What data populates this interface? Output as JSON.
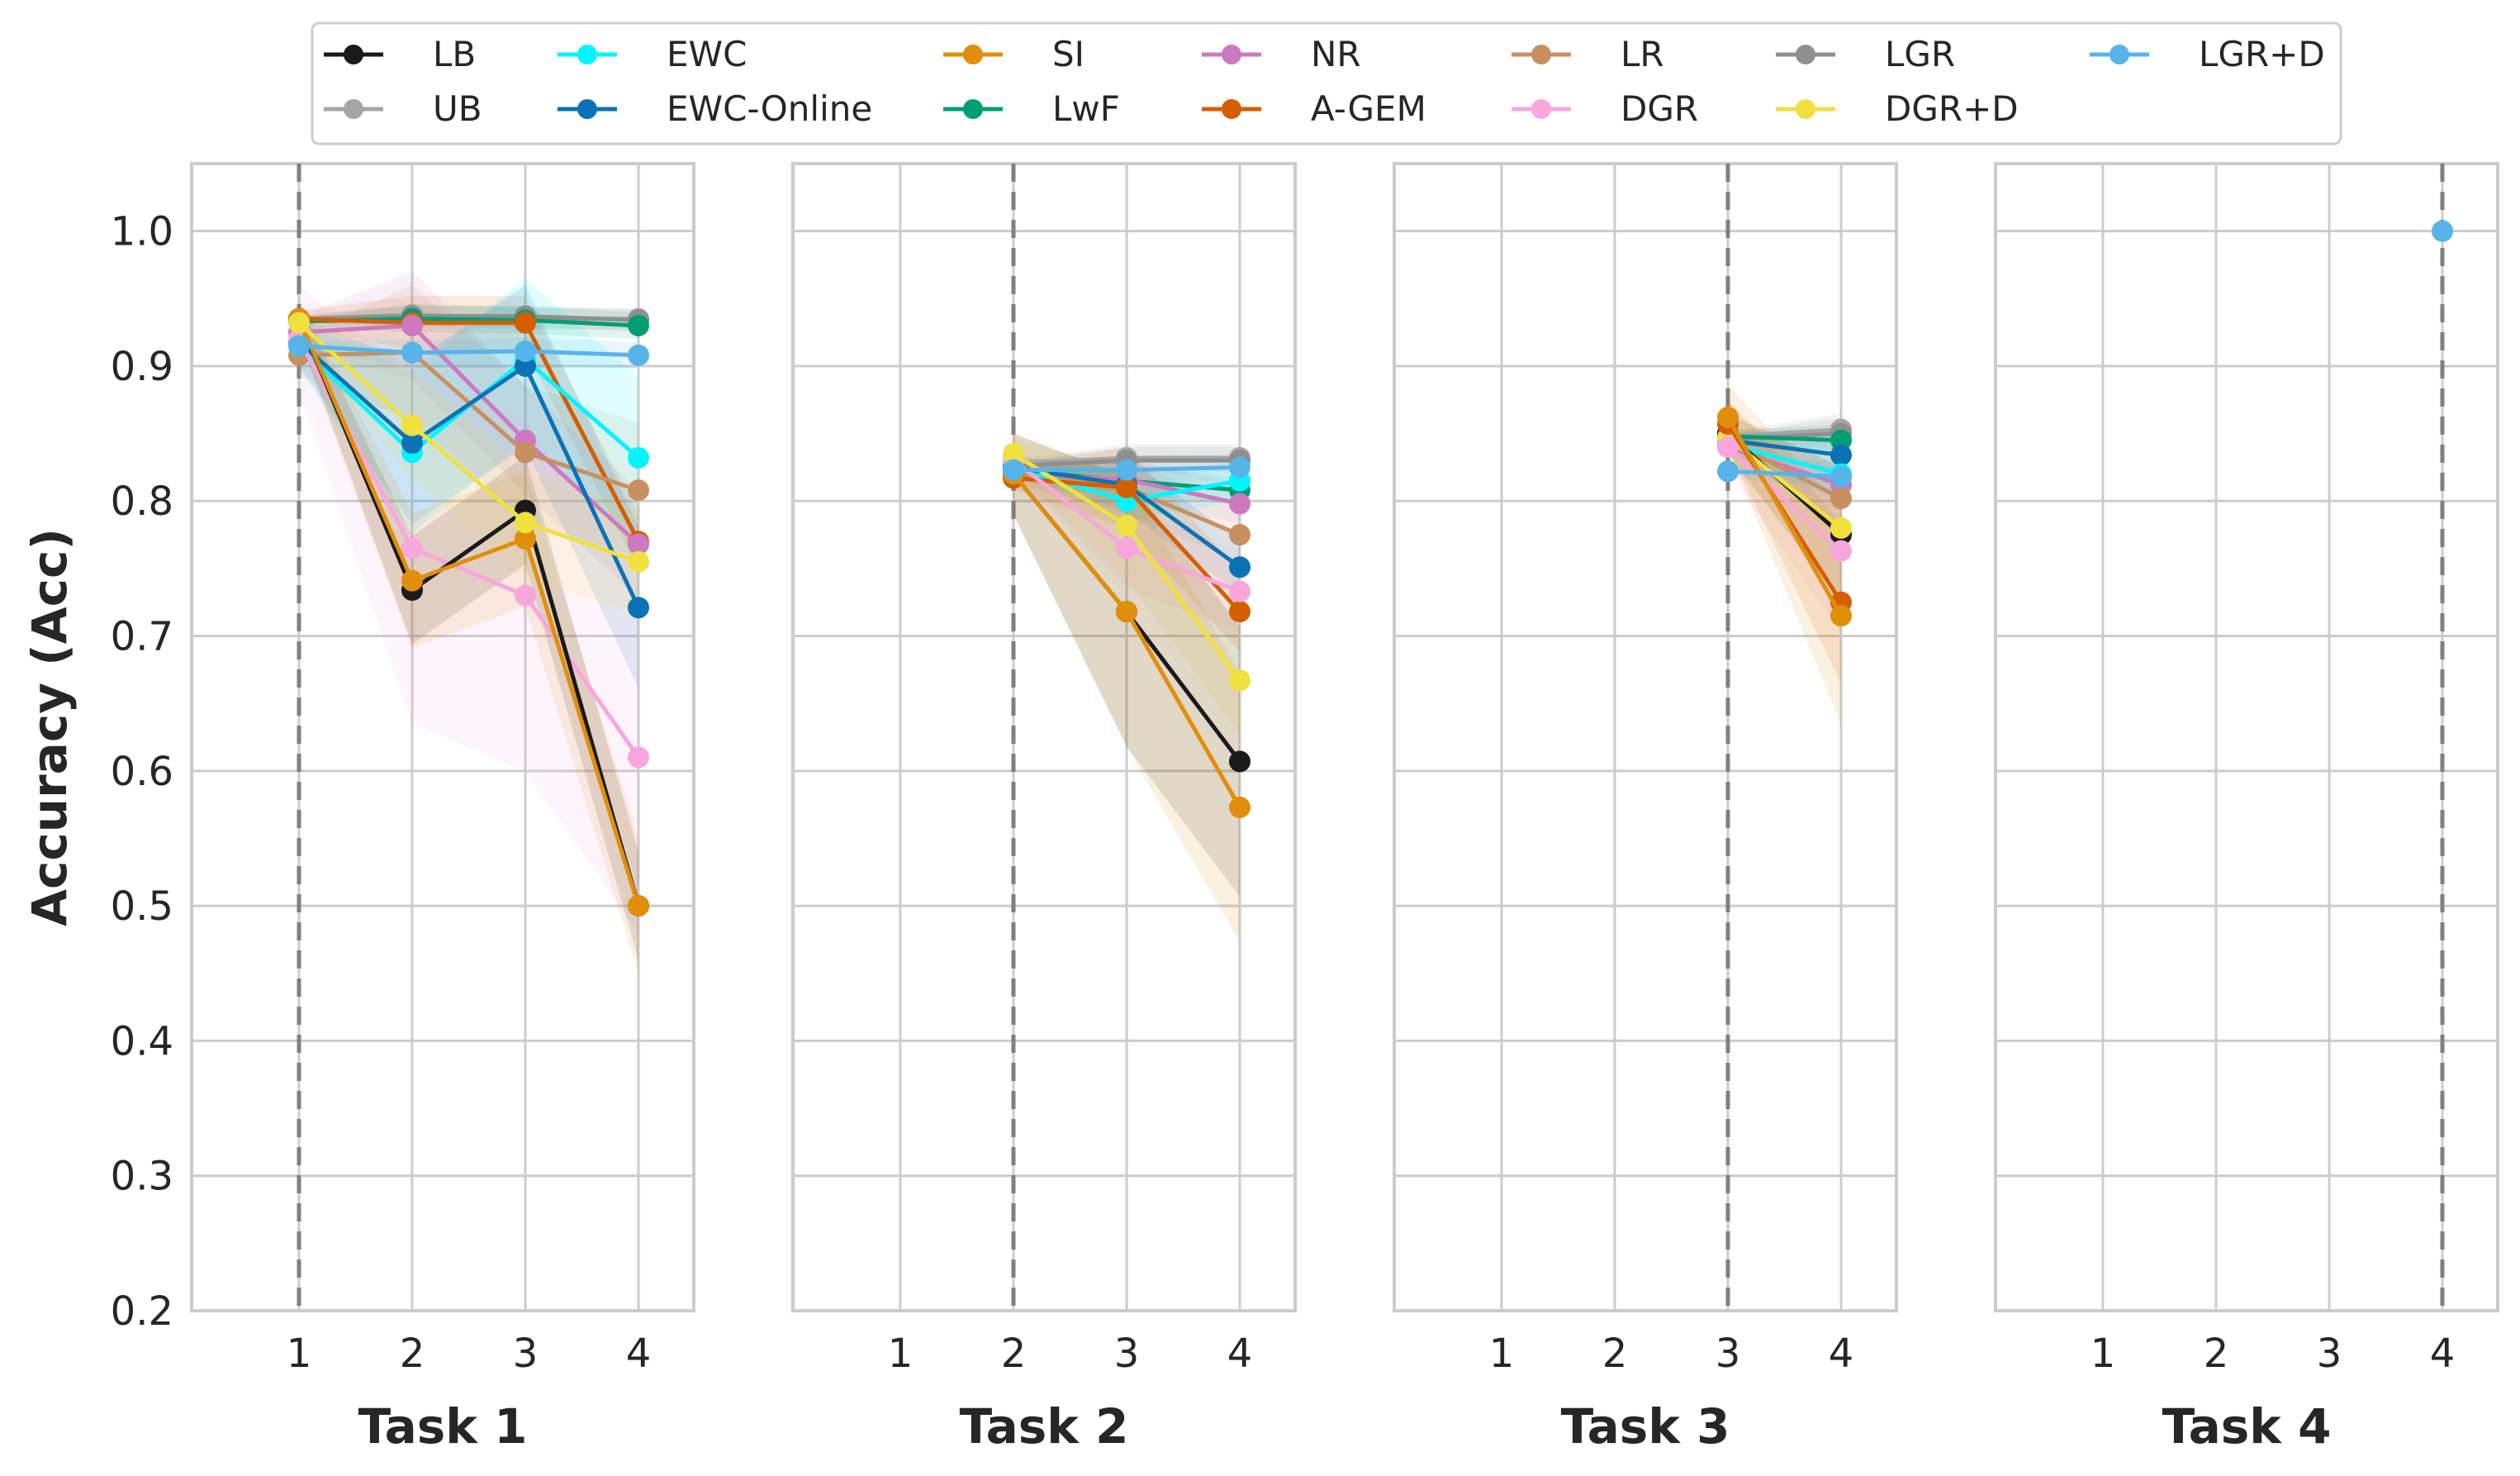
{
  "chart_data": {
    "type": "line",
    "ylabel": "Accuracy (Acc)",
    "ylim": [
      0.2,
      1.05
    ],
    "yticks": [
      "0.2",
      "0.3",
      "0.4",
      "0.5",
      "0.6",
      "0.7",
      "0.8",
      "0.9",
      "1.0"
    ],
    "x": [
      1,
      2,
      3,
      4
    ],
    "xtick_labels": [
      "1",
      "2",
      "3",
      "4"
    ],
    "grid": true,
    "legend_position": "top-center",
    "legend": [
      {
        "name": "LB",
        "color": "#1a1a1a"
      },
      {
        "name": "UB",
        "color": "#a6a6a6"
      },
      {
        "name": "EWC",
        "color": "#00f5ff"
      },
      {
        "name": "EWC-Online",
        "color": "#0b72b5"
      },
      {
        "name": "SI",
        "color": "#e08e0b"
      },
      {
        "name": "LwF",
        "color": "#009e73"
      },
      {
        "name": "NR",
        "color": "#cc79c1"
      },
      {
        "name": "A-GEM",
        "color": "#d55e00"
      },
      {
        "name": "LR",
        "color": "#c8905f"
      },
      {
        "name": "DGR",
        "color": "#f9a6dc"
      },
      {
        "name": "LGR",
        "color": "#8f8f8f"
      },
      {
        "name": "DGR+D",
        "color": "#f0e040"
      },
      {
        "name": "LGR+D",
        "color": "#56b4e9"
      }
    ],
    "panels": [
      {
        "xlabel": "Task 1",
        "task_line": 1,
        "series": [
          {
            "name": "UB",
            "x": [
              1,
              2,
              3,
              4
            ],
            "values": [
              0.935,
              0.938,
              0.935,
              0.935
            ],
            "band": 0.008
          },
          {
            "name": "LGR",
            "x": [
              1,
              2,
              3,
              4
            ],
            "values": [
              0.935,
              0.937,
              0.937,
              0.934
            ],
            "band": 0.008
          },
          {
            "name": "LwF",
            "x": [
              1,
              2,
              3,
              4
            ],
            "values": [
              0.933,
              0.935,
              0.934,
              0.93
            ],
            "band": 0.01
          },
          {
            "name": "A-GEM",
            "x": [
              1,
              2,
              3,
              4
            ],
            "values": [
              0.935,
              0.932,
              0.932,
              0.77
            ],
            "band": 0.02
          },
          {
            "name": "NR",
            "x": [
              1,
              2,
              3,
              4
            ],
            "values": [
              0.925,
              0.93,
              0.845,
              0.768
            ],
            "band": 0.04
          },
          {
            "name": "LR",
            "x": [
              1,
              2,
              3,
              4
            ],
            "values": [
              0.908,
              0.91,
              0.836,
              0.808
            ],
            "band": 0.05
          },
          {
            "name": "EWC",
            "x": [
              1,
              2,
              3,
              4
            ],
            "values": [
              0.915,
              0.836,
              0.905,
              0.832
            ],
            "band": 0.06
          },
          {
            "name": "EWC-Online",
            "x": [
              1,
              2,
              3,
              4
            ],
            "values": [
              0.918,
              0.843,
              0.9,
              0.721
            ],
            "band": 0.06
          },
          {
            "name": "DGR",
            "x": [
              1,
              2,
              3,
              4
            ],
            "values": [
              0.92,
              0.765,
              0.73,
              0.61
            ],
            "band": 0.13
          },
          {
            "name": "LB",
            "x": [
              1,
              2,
              3,
              4
            ],
            "values": [
              0.935,
              0.734,
              0.793,
              0.5
            ],
            "band": 0.04
          },
          {
            "name": "SI",
            "x": [
              1,
              2,
              3,
              4
            ],
            "values": [
              0.935,
              0.741,
              0.772,
              0.5
            ],
            "band": 0.05
          },
          {
            "name": "DGR+D",
            "x": [
              1,
              2,
              3,
              4
            ],
            "values": [
              0.932,
              0.856,
              0.784,
              0.755
            ],
            "band": 0.04
          },
          {
            "name": "LGR+D",
            "x": [
              1,
              2,
              3,
              4
            ],
            "values": [
              0.915,
              0.91,
              0.911,
              0.908
            ],
            "band": 0.01
          }
        ]
      },
      {
        "xlabel": "Task 2",
        "task_line": 2,
        "series": [
          {
            "name": "UB",
            "x": [
              2,
              3,
              4
            ],
            "values": [
              0.828,
              0.832,
              0.832
            ],
            "band": 0.01
          },
          {
            "name": "LGR",
            "x": [
              2,
              3,
              4
            ],
            "values": [
              0.826,
              0.83,
              0.83
            ],
            "band": 0.01
          },
          {
            "name": "LwF",
            "x": [
              2,
              3,
              4
            ],
            "values": [
              0.823,
              0.815,
              0.808
            ],
            "band": 0.01
          },
          {
            "name": "NR",
            "x": [
              2,
              3,
              4
            ],
            "values": [
              0.82,
              0.816,
              0.798
            ],
            "band": 0.015
          },
          {
            "name": "LR",
            "x": [
              2,
              3,
              4
            ],
            "values": [
              0.82,
              0.81,
              0.775
            ],
            "band": 0.02
          },
          {
            "name": "EWC",
            "x": [
              2,
              3,
              4
            ],
            "values": [
              0.825,
              0.8,
              0.815
            ],
            "band": 0.015
          },
          {
            "name": "EWC-Online",
            "x": [
              2,
              3,
              4
            ],
            "values": [
              0.825,
              0.812,
              0.751
            ],
            "band": 0.02
          },
          {
            "name": "A-GEM",
            "x": [
              2,
              3,
              4
            ],
            "values": [
              0.817,
              0.81,
              0.718
            ],
            "band": 0.03
          },
          {
            "name": "DGR",
            "x": [
              2,
              3,
              4
            ],
            "values": [
              0.83,
              0.765,
              0.733
            ],
            "band": 0.03
          },
          {
            "name": "DGR+D",
            "x": [
              2,
              3,
              4
            ],
            "values": [
              0.835,
              0.782,
              0.667
            ],
            "band": 0.04
          },
          {
            "name": "LB",
            "x": [
              2,
              3,
              4
            ],
            "values": [
              0.82,
              0.718,
              0.607
            ],
            "band": 0.1
          },
          {
            "name": "SI",
            "x": [
              2,
              3,
              4
            ],
            "values": [
              0.82,
              0.718,
              0.573
            ],
            "band": 0.1
          },
          {
            "name": "LGR+D",
            "x": [
              2,
              3,
              4
            ],
            "values": [
              0.823,
              0.823,
              0.825
            ],
            "band": 0.01
          }
        ]
      },
      {
        "xlabel": "Task 3",
        "task_line": 3,
        "series": [
          {
            "name": "UB",
            "x": [
              3,
              4
            ],
            "values": [
              0.848,
              0.853
            ],
            "band": 0.012
          },
          {
            "name": "LGR",
            "x": [
              3,
              4
            ],
            "values": [
              0.846,
              0.85
            ],
            "band": 0.012
          },
          {
            "name": "LwF",
            "x": [
              3,
              4
            ],
            "values": [
              0.848,
              0.845
            ],
            "band": 0.012
          },
          {
            "name": "EWC-Online",
            "x": [
              3,
              4
            ],
            "values": [
              0.845,
              0.834
            ],
            "band": 0.015
          },
          {
            "name": "NR",
            "x": [
              3,
              4
            ],
            "values": [
              0.84,
              0.812
            ],
            "band": 0.02
          },
          {
            "name": "LR",
            "x": [
              3,
              4
            ],
            "values": [
              0.845,
              0.802
            ],
            "band": 0.02
          },
          {
            "name": "EWC",
            "x": [
              3,
              4
            ],
            "values": [
              0.842,
              0.82
            ],
            "band": 0.02
          },
          {
            "name": "LB",
            "x": [
              3,
              4
            ],
            "values": [
              0.85,
              0.775
            ],
            "band": 0.05
          },
          {
            "name": "DGR+D",
            "x": [
              3,
              4
            ],
            "values": [
              0.847,
              0.78
            ],
            "band": 0.05
          },
          {
            "name": "DGR",
            "x": [
              3,
              4
            ],
            "values": [
              0.84,
              0.763
            ],
            "band": 0.06
          },
          {
            "name": "A-GEM",
            "x": [
              3,
              4
            ],
            "values": [
              0.857,
              0.725
            ],
            "band": 0.06
          },
          {
            "name": "SI",
            "x": [
              3,
              4
            ],
            "values": [
              0.862,
              0.715
            ],
            "band": 0.08
          },
          {
            "name": "LGR+D",
            "x": [
              3,
              4
            ],
            "values": [
              0.822,
              0.818
            ],
            "band": 0.012
          }
        ]
      },
      {
        "xlabel": "Task 4",
        "task_line": 4,
        "series": [
          {
            "name": "LGR+D",
            "x": [
              4
            ],
            "values": [
              1.0
            ],
            "band": 0
          }
        ]
      }
    ]
  }
}
